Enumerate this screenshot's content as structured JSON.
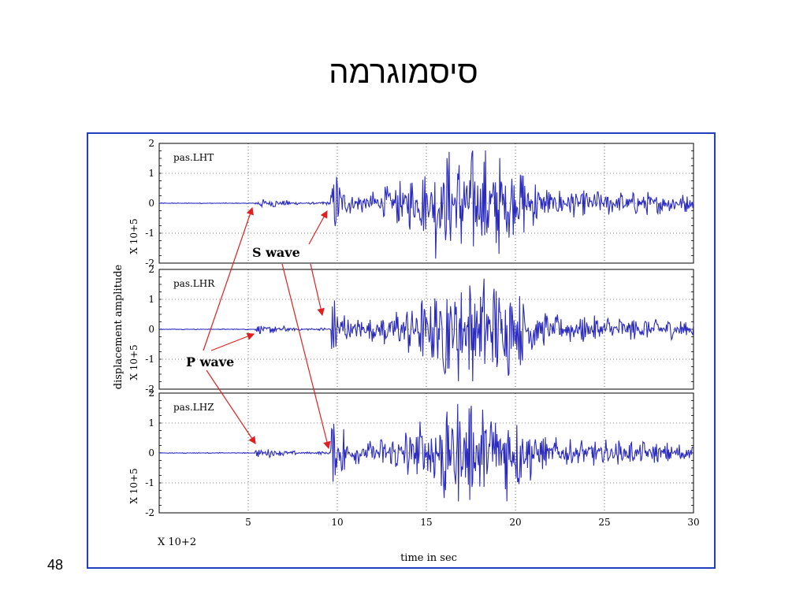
{
  "slide": {
    "title": "סיסמוגרמה",
    "page_number": "48"
  },
  "chart_data": {
    "type": "line",
    "xlabel": "time  in  sec",
    "ylabel": "displacement  amplitude",
    "x_multiplier": "X  10+2",
    "y_multiplier": "X  10+5",
    "xlim": [
      0,
      30
    ],
    "x_ticks": [
      "5",
      "10",
      "15",
      "20",
      "25",
      "30"
    ],
    "ylim": [
      -2,
      2
    ],
    "y_ticks": [
      "2",
      "1",
      "0",
      "-1",
      "-2"
    ],
    "grid": true,
    "series_color": "#2b2bbf",
    "panels": [
      {
        "name": "pas.LHT",
        "p_onset": 5.4,
        "s_onset": 9.6
      },
      {
        "name": "pas.LHR",
        "p_onset": 5.4,
        "s_onset": 9.6
      },
      {
        "name": "pas.LHZ",
        "p_onset": 5.4,
        "s_onset": 9.6
      }
    ],
    "annotations": [
      {
        "text": "S wave",
        "color": "#000000",
        "arrow_color": "#e02020"
      },
      {
        "text": "P wave",
        "color": "#000000",
        "arrow_color": "#e02020"
      }
    ]
  }
}
